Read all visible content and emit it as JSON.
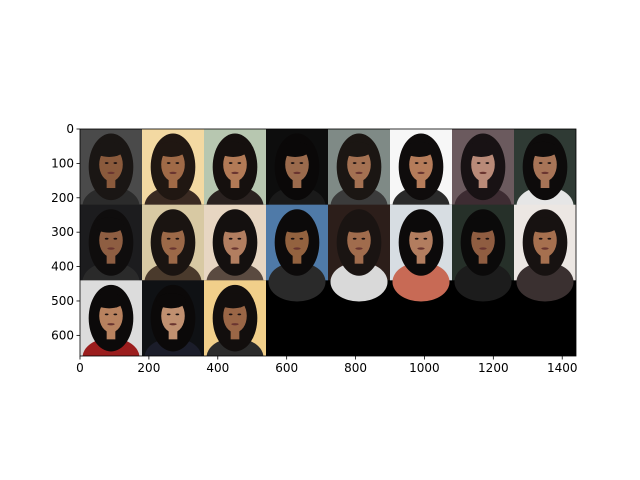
{
  "chart_data": {
    "type": "image-grid",
    "title": "",
    "xlabel": "",
    "ylabel": "",
    "xlim": [
      0,
      1440
    ],
    "ylim": [
      660,
      0
    ],
    "x_ticks": [
      0,
      200,
      400,
      600,
      800,
      1000,
      1200,
      1400
    ],
    "y_ticks": [
      0,
      100,
      200,
      300,
      400,
      500,
      600
    ],
    "grid": false,
    "tile_size": [
      180,
      220
    ],
    "columns": 8,
    "rows": 3,
    "tile_count": 19,
    "empty_fill": "#000000",
    "tiles": [
      {
        "bg": "#4a4a4a",
        "hair": "#1a1614",
        "skin": "#8a5a3c",
        "shirt": "#2b2b2b"
      },
      {
        "bg": "#f3d9a2",
        "hair": "#201712",
        "skin": "#a06a47",
        "shirt": "#3a2a22"
      },
      {
        "bg": "#b7c7b0",
        "hair": "#15100e",
        "skin": "#b27a56",
        "shirt": "#2a2220"
      },
      {
        "bg": "#0d0d0d",
        "hair": "#0a0808",
        "skin": "#9a6a4c",
        "shirt": "#1a1a1a"
      },
      {
        "bg": "#7f8a86",
        "hair": "#1b1613",
        "skin": "#a47152",
        "shirt": "#3b3b3b"
      },
      {
        "bg": "#f7f7f7",
        "hair": "#0f0c0c",
        "skin": "#b57c5a",
        "shirt": "#2a2a2a"
      },
      {
        "bg": "#6b5a5e",
        "hair": "#181214",
        "skin": "#b98a78",
        "shirt": "#3d2c32"
      },
      {
        "bg": "#2f3a34",
        "hair": "#0d0b0b",
        "skin": "#a77457",
        "shirt": "#e6e6e6"
      },
      {
        "bg": "#1c1c1e",
        "hair": "#0f0d0d",
        "skin": "#8e5e42",
        "shirt": "#2a2a2a"
      },
      {
        "bg": "#d8c9a3",
        "hair": "#1a1411",
        "skin": "#9c6948",
        "shirt": "#4a3a2c"
      },
      {
        "bg": "#e7d6c2",
        "hair": "#14100f",
        "skin": "#b27e60",
        "shirt": "#5a4a40"
      },
      {
        "bg": "#4f7aa8",
        "hair": "#0c0a0a",
        "skin": "#93623f",
        "shirt": "#2a2a2a"
      },
      {
        "bg": "#2c1e1a",
        "hair": "#1a1412",
        "skin": "#a06c4d",
        "shirt": "#d9d9d9"
      },
      {
        "bg": "#d7dde2",
        "hair": "#0c0a0a",
        "skin": "#b27d5f",
        "shirt": "#c86a55"
      },
      {
        "bg": "#263029",
        "hair": "#0b0a0a",
        "skin": "#8f5d41",
        "shirt": "#1c1c1c"
      },
      {
        "bg": "#ece7e3",
        "hair": "#171211",
        "skin": "#a6704f",
        "shirt": "#3a3030"
      },
      {
        "bg": "#dcdcdc",
        "hair": "#0c0a0a",
        "skin": "#b8825f",
        "shirt": "#9b1e1e"
      },
      {
        "bg": "#0f1114",
        "hair": "#0b0909",
        "skin": "#c09070",
        "shirt": "#1b1d2a"
      },
      {
        "bg": "#f1cf8a",
        "hair": "#120e0d",
        "skin": "#9a6646",
        "shirt": "#2b2b2b"
      }
    ]
  }
}
